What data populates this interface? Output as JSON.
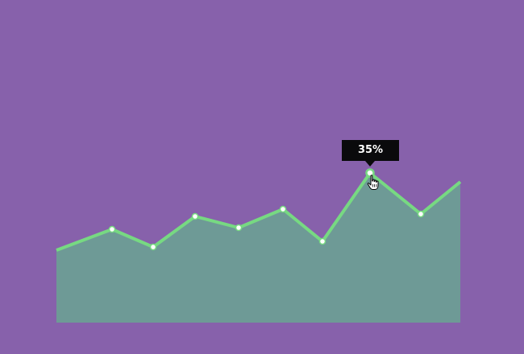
{
  "colors": {
    "background": "#8761ab",
    "area_fill": "#6e9a96",
    "line": "#77d982",
    "point_fill": "#ffffff",
    "tooltip_bg": "#0a0a0c",
    "tooltip_text": "#ffffff"
  },
  "tooltip": {
    "label": "35%"
  },
  "chart_data": {
    "type": "area",
    "title": "",
    "xlabel": "",
    "ylabel": "",
    "grid": false,
    "legend": "none",
    "x": [
      0,
      1,
      2,
      3,
      4,
      5,
      6,
      7,
      8,
      9
    ],
    "series": [
      {
        "values": [
          8,
          12,
          8,
          14,
          12,
          16,
          9,
          23,
          12,
          20
        ]
      }
    ],
    "ylim": [
      0,
      20
    ],
    "highlighted_index": 7,
    "highlighted_label": "35%"
  },
  "cursor_icon": "hand-pointer-icon"
}
